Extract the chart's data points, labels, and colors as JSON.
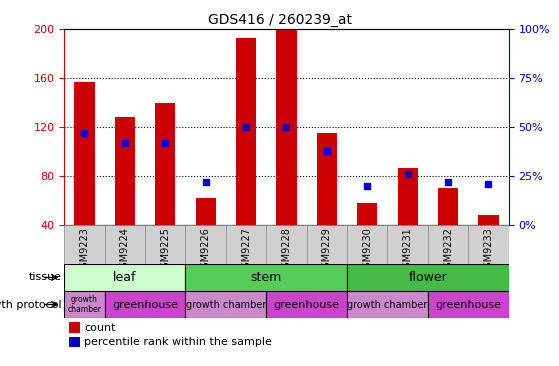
{
  "title": "GDS416 / 260239_at",
  "samples": [
    "GSM9223",
    "GSM9224",
    "GSM9225",
    "GSM9226",
    "GSM9227",
    "GSM9228",
    "GSM9229",
    "GSM9230",
    "GSM9231",
    "GSM9232",
    "GSM9233"
  ],
  "counts": [
    157,
    128,
    140,
    62,
    193,
    200,
    115,
    58,
    87,
    70,
    48
  ],
  "percentiles": [
    47,
    42,
    42,
    22,
    50,
    50,
    38,
    20,
    26,
    22,
    21
  ],
  "ylim_left": [
    40,
    200
  ],
  "ylim_right": [
    0,
    100
  ],
  "yticks_left": [
    40,
    80,
    120,
    160,
    200
  ],
  "yticks_right": [
    0,
    25,
    50,
    75,
    100
  ],
  "bar_color": "#cc0000",
  "dot_color": "#0000cc",
  "grid_yticks": [
    80,
    120,
    160
  ],
  "tissue_groups": [
    {
      "label": "leaf",
      "start": 0,
      "end": 3,
      "color": "#ccffcc"
    },
    {
      "label": "stem",
      "start": 3,
      "end": 7,
      "color": "#55cc55"
    },
    {
      "label": "flower",
      "start": 7,
      "end": 11,
      "color": "#44bb44"
    }
  ],
  "protocol_groups": [
    {
      "label": "growth\nchamber",
      "start": 0,
      "end": 1,
      "color": "#cc88cc",
      "fontsize": 5.5
    },
    {
      "label": "greenhouse",
      "start": 1,
      "end": 3,
      "color": "#cc44cc",
      "fontsize": 8
    },
    {
      "label": "growth chamber",
      "start": 3,
      "end": 5,
      "color": "#cc88cc",
      "fontsize": 7
    },
    {
      "label": "greenhouse",
      "start": 5,
      "end": 7,
      "color": "#cc44cc",
      "fontsize": 8
    },
    {
      "label": "growth chamber",
      "start": 7,
      "end": 9,
      "color": "#cc88cc",
      "fontsize": 7
    },
    {
      "label": "greenhouse",
      "start": 9,
      "end": 11,
      "color": "#cc44cc",
      "fontsize": 8
    }
  ],
  "xticklabel_bg": "#d0d0d0",
  "xticklabel_fontsize": 7,
  "axis_left_color": "#cc0000",
  "axis_right_color": "#0000cc",
  "label_fontsize": 8,
  "tissue_label_fontsize": 9,
  "protocol_label_fontsize": 8,
  "legend_fontsize": 8
}
